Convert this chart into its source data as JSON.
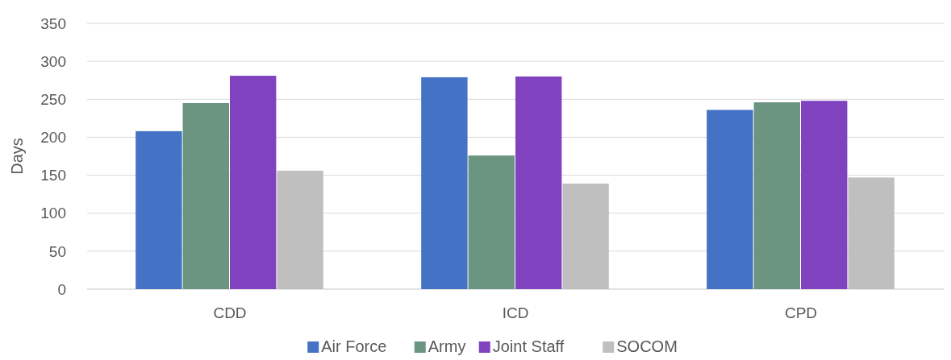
{
  "chart_data": {
    "type": "bar",
    "ylabel": "Days",
    "categories": [
      "CDD",
      "ICD",
      "CPD"
    ],
    "series": [
      {
        "name": "Air Force",
        "color": "#4472c4",
        "values": [
          208,
          279,
          236
        ]
      },
      {
        "name": "Army",
        "color": "#6b9580",
        "values": [
          245,
          176,
          246
        ]
      },
      {
        "name": "Joint Staff",
        "color": "#8042bf",
        "values": [
          281,
          280,
          248
        ]
      },
      {
        "name": "SOCOM",
        "color": "#bfbfbf",
        "values": [
          156,
          139,
          147
        ]
      }
    ],
    "ylim": [
      0,
      350
    ],
    "yticks": [
      0,
      50,
      100,
      150,
      200,
      250,
      300,
      350
    ],
    "grid": "y",
    "legend": "bottom"
  }
}
